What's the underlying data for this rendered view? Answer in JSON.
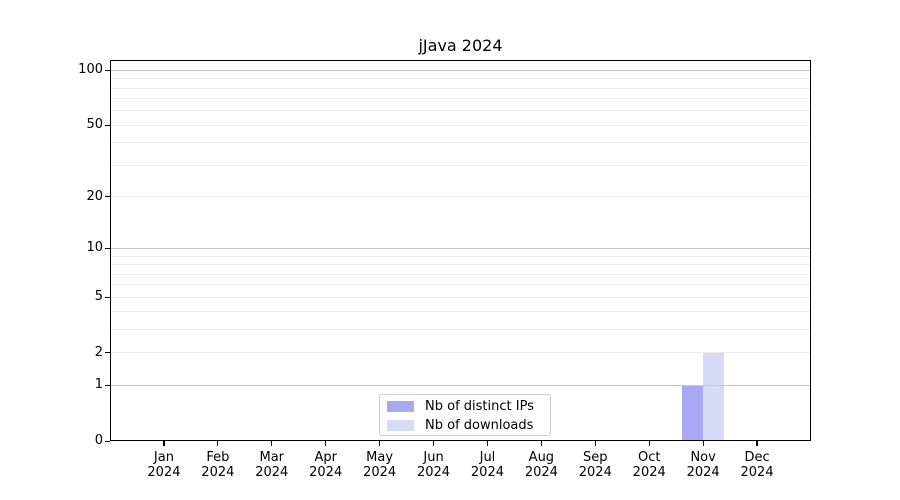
{
  "title": "jJava 2024",
  "colors": {
    "distinct_ips_bar": "#a9a9f3",
    "downloads_bar": "#d9d9f8",
    "grid_major": "#c6c6c6",
    "grid_minor": "#ebebeb",
    "axis": "#000000",
    "legend_border": "#cccccc",
    "text": "#000000"
  },
  "legend": {
    "items": [
      "Nb of distinct IPs",
      "Nb of downloads"
    ]
  },
  "chart_data": {
    "type": "bar",
    "title": "jJava 2024",
    "categories": [
      "Jan 2024",
      "Feb 2024",
      "Mar 2024",
      "Apr 2024",
      "May 2024",
      "Jun 2024",
      "Jul 2024",
      "Aug 2024",
      "Sep 2024",
      "Oct 2024",
      "Nov 2024",
      "Dec 2024"
    ],
    "series": [
      {
        "name": "Nb of distinct IPs",
        "color": "#a9a9f3",
        "values": [
          0,
          0,
          0,
          0,
          0,
          0,
          0,
          0,
          0,
          0,
          1,
          0
        ]
      },
      {
        "name": "Nb of downloads",
        "color": "#d9d9f8",
        "values": [
          0,
          0,
          0,
          0,
          0,
          0,
          0,
          0,
          0,
          0,
          2,
          0
        ]
      }
    ],
    "xlabel": "",
    "ylabel": "",
    "y_scale": "log1p",
    "ylim": [
      0,
      114
    ],
    "y_ticks": [
      0,
      1,
      2,
      5,
      10,
      20,
      50,
      100
    ],
    "y_grid_major": [
      1,
      10,
      100
    ],
    "y_grid_minor": [
      2,
      3,
      4,
      5,
      6,
      7,
      8,
      9,
      20,
      30,
      40,
      50,
      60,
      70,
      80,
      90
    ],
    "grid": "on",
    "legend_position": "lower center inside plot"
  }
}
